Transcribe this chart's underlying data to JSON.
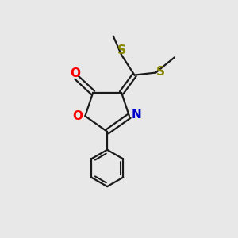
{
  "background_color": "#e8e8e8",
  "bond_color": "#1a1a1a",
  "oxygen_color": "#ff0000",
  "nitrogen_color": "#0000cc",
  "sulfur_color": "#888800",
  "line_width": 1.6,
  "figsize": [
    3.0,
    3.0
  ],
  "dpi": 100,
  "xlim": [
    0,
    10
  ],
  "ylim": [
    0,
    10
  ]
}
